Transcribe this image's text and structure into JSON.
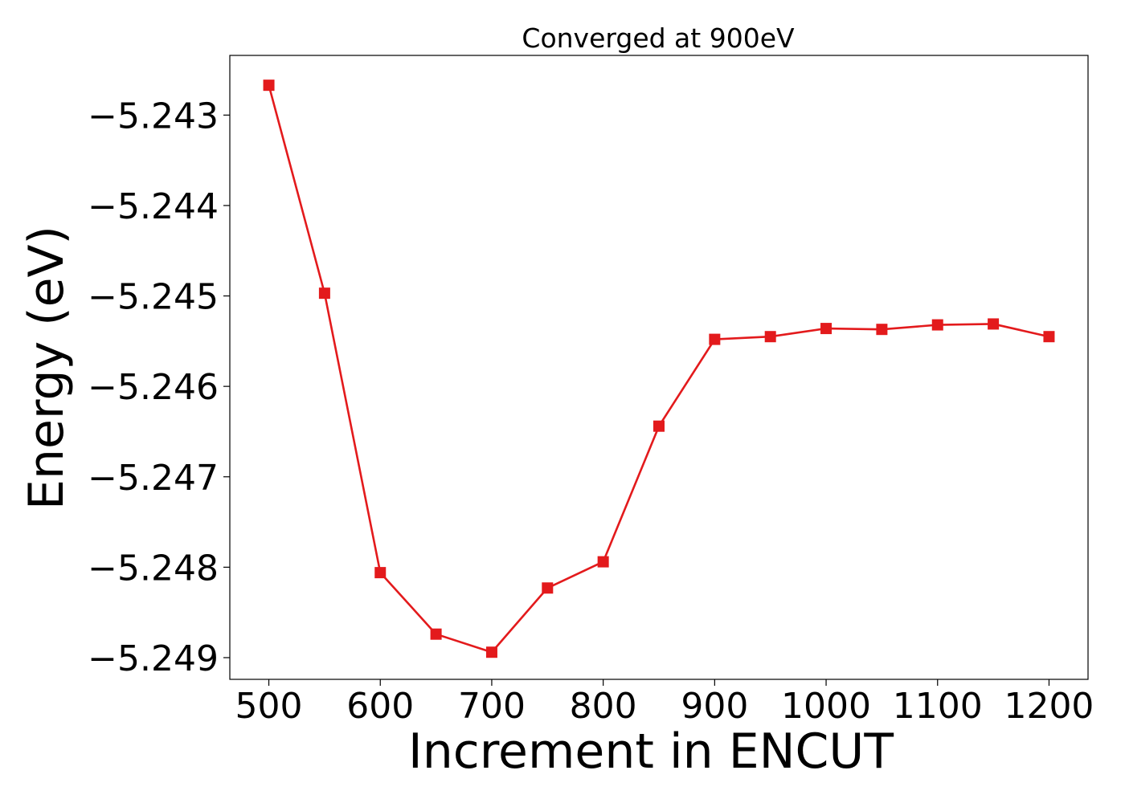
{
  "chart_data": {
    "type": "line",
    "title": "Converged at 900eV",
    "xlabel": "Increment in ENCUT",
    "ylabel": "Energy (eV)",
    "x": [
      500,
      550,
      600,
      650,
      700,
      750,
      800,
      850,
      900,
      950,
      1000,
      1050,
      1100,
      1150,
      1200
    ],
    "series": [
      {
        "values": [
          -5.24267,
          -5.24497,
          -5.24806,
          -5.24874,
          -5.24894,
          -5.24823,
          -5.24794,
          -5.24644,
          -5.24548,
          -5.24545,
          -5.24536,
          -5.24537,
          -5.24532,
          -5.24531,
          -5.24545
        ],
        "color": "#e31a1c",
        "marker": "square"
      }
    ],
    "xlim": [
      465,
      1235
    ],
    "ylim": [
      -5.24924,
      -5.24234
    ],
    "xticks": [
      500,
      600,
      700,
      800,
      900,
      1000,
      1100,
      1200
    ],
    "xtick_labels": [
      "500",
      "600",
      "700",
      "800",
      "900",
      "1000",
      "1100",
      "1200"
    ],
    "yticks": [
      -5.243,
      -5.244,
      -5.245,
      -5.246,
      -5.247,
      -5.248,
      -5.249
    ],
    "ytick_labels": [
      "−5.243",
      "−5.244",
      "−5.245",
      "−5.246",
      "−5.247",
      "−5.248",
      "−5.249"
    ],
    "grid": false,
    "legend": "none"
  }
}
